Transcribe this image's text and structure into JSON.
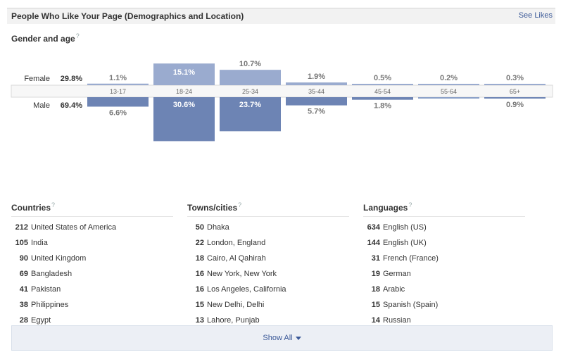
{
  "header": {
    "title": "People Who Like Your Page (Demographics and Location)",
    "see_likes": "See Likes"
  },
  "gender_age": {
    "title": "Gender and age",
    "help": "?"
  },
  "chart_data": {
    "type": "bar",
    "categories": [
      "13-17",
      "18-24",
      "25-34",
      "35-44",
      "45-54",
      "55-64",
      "65+"
    ],
    "series": [
      {
        "name": "Female",
        "total": "29.8%",
        "values": [
          1.1,
          15.1,
          10.7,
          1.9,
          0.5,
          0.2,
          0.3
        ],
        "labels": [
          "1.1%",
          "15.1%",
          "10.7%",
          "1.9%",
          "0.5%",
          "0.2%",
          "0.3%"
        ],
        "color": "#9aabcf"
      },
      {
        "name": "Male",
        "total": "69.4%",
        "values": [
          6.6,
          30.6,
          23.7,
          5.7,
          1.8,
          0.0,
          0.9
        ],
        "labels": [
          "6.6%",
          "30.6%",
          "23.7%",
          "5.7%",
          "1.8%",
          "",
          "0.9%"
        ],
        "color": "#6d84b4"
      }
    ],
    "title": "",
    "xlabel": "",
    "ylabel": ""
  },
  "countries": {
    "title": "Countries",
    "help": "?",
    "items": [
      {
        "count": "212",
        "name": "United States of America"
      },
      {
        "count": "105",
        "name": "India"
      },
      {
        "count": "90",
        "name": "United Kingdom"
      },
      {
        "count": "69",
        "name": "Bangladesh"
      },
      {
        "count": "41",
        "name": "Pakistan"
      },
      {
        "count": "38",
        "name": "Philippines"
      },
      {
        "count": "28",
        "name": "Egypt"
      }
    ]
  },
  "towns": {
    "title": "Towns/cities",
    "help": "?",
    "items": [
      {
        "count": "50",
        "name": "Dhaka"
      },
      {
        "count": "22",
        "name": "London, England"
      },
      {
        "count": "18",
        "name": "Cairo, Al Qahirah"
      },
      {
        "count": "16",
        "name": "New York, New York"
      },
      {
        "count": "16",
        "name": "Los Angeles, California"
      },
      {
        "count": "15",
        "name": "New Delhi, Delhi"
      },
      {
        "count": "13",
        "name": "Lahore, Punjab"
      }
    ]
  },
  "languages": {
    "title": "Languages",
    "help": "?",
    "items": [
      {
        "count": "634",
        "name": "English (US)"
      },
      {
        "count": "144",
        "name": "English (UK)"
      },
      {
        "count": "31",
        "name": "French (France)"
      },
      {
        "count": "19",
        "name": "German"
      },
      {
        "count": "18",
        "name": "Arabic"
      },
      {
        "count": "15",
        "name": "Spanish (Spain)"
      },
      {
        "count": "14",
        "name": "Russian"
      }
    ]
  },
  "show_all": {
    "label": "Show All"
  },
  "colors": {
    "link": "#3b5998",
    "female_bar": "#9aabcf",
    "male_bar": "#6d84b4",
    "header_bg": "#f2f2f2"
  }
}
